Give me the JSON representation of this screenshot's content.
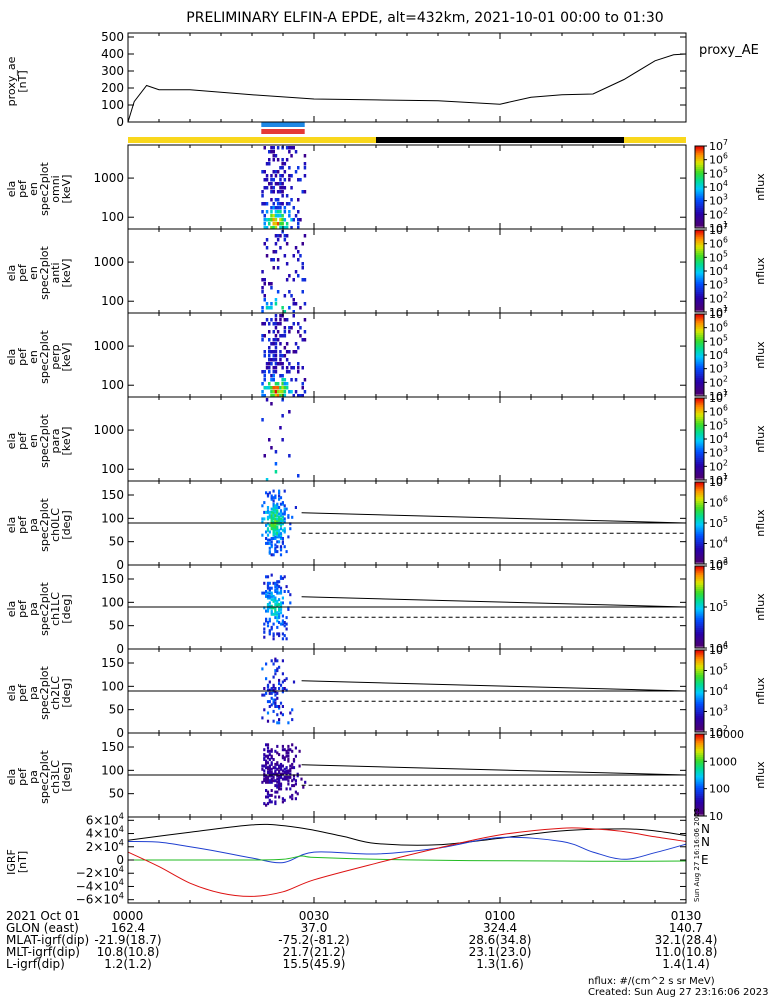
{
  "title": "PRELIMINARY ELFIN-A EPDE, alt=432km, 2021-10-01 00:00 to 01:30",
  "time_axis": {
    "ticks": [
      "0000",
      "0030",
      "0100",
      "0130"
    ],
    "tick_minutes": [
      0,
      30,
      60,
      90
    ],
    "range_minutes": [
      0,
      90
    ]
  },
  "annotation_rows": [
    {
      "label": "2021 Oct 01",
      "values": [
        "0000",
        "0030",
        "0100",
        "0130"
      ]
    },
    {
      "label": "GLON (east)",
      "values": [
        "162.4",
        "37.0",
        "324.4",
        "140.7"
      ]
    },
    {
      "label": "MLAT-igrf(dip)",
      "values": [
        "-21.9(18.7)",
        "-75.2(-81.2)",
        "28.6(34.8)",
        "32.1(28.4)"
      ]
    },
    {
      "label": "MLT-igrf(dip)",
      "values": [
        "10.8(10.8)",
        "21.7(21.2)",
        "23.1(23.0)",
        "11.0(10.8)"
      ]
    },
    {
      "label": "L-igrf(dip)",
      "values": [
        "1.2(1.2)",
        "15.5(45.9)",
        "1.3(1.6)",
        "1.4(1.4)"
      ]
    }
  ],
  "footer": {
    "units": "nflux: #/(cm^2 s sr MeV)",
    "created": "Created: Sun Aug 27 23:16:06 2023"
  },
  "side_stamp": "Sun Aug 27 16:16:06 2023",
  "chart_data": [
    {
      "type": "line",
      "id": "proxy_ae",
      "ylabel": [
        "proxy_ae",
        "[nT]"
      ],
      "legend": "proxy_AE",
      "ylim": [
        0,
        500
      ],
      "yticks": [
        0,
        100,
        200,
        300,
        400,
        500
      ],
      "x": [
        0,
        1,
        3,
        5,
        10,
        20,
        30,
        40,
        50,
        60,
        65,
        70,
        75,
        80,
        85,
        88,
        90
      ],
      "values": [
        0,
        120,
        215,
        190,
        190,
        160,
        135,
        130,
        125,
        105,
        145,
        160,
        165,
        250,
        360,
        395,
        400
      ]
    },
    {
      "type": "bar",
      "id": "status_bars",
      "rows": [
        {
          "segments": [
            {
              "x0": 21.5,
              "x1": 28.5,
              "color": "#1e88e5"
            }
          ]
        },
        {
          "segments": [
            {
              "x0": 21.5,
              "x1": 28.5,
              "color": "#e53935"
            }
          ]
        },
        {
          "segments": [
            {
              "x0": 0,
              "x1": 40,
              "color": "#f9d71c"
            },
            {
              "x0": 40,
              "x1": 80,
              "color": "#000000"
            },
            {
              "x0": 80,
              "x1": 90,
              "color": "#f9d71c"
            }
          ]
        }
      ]
    },
    {
      "type": "heatmap",
      "id": "en_omni",
      "scale": "log",
      "ylabel": [
        "ela",
        "pef",
        "en",
        "spec2plot",
        "omni",
        "[keV]"
      ],
      "yticks": [
        100,
        1000
      ],
      "ylim": [
        50,
        7000
      ],
      "x_range": [
        21.5,
        28.5
      ],
      "intensity": "high",
      "peak_energy": 80,
      "colorbar": {
        "label": "nflux",
        "ticks": [
          "10^1",
          "10^2",
          "10^3",
          "10^4",
          "10^5",
          "10^6",
          "10^7"
        ]
      }
    },
    {
      "type": "heatmap",
      "id": "en_anti",
      "scale": "log",
      "ylabel": [
        "ela",
        "pef",
        "en",
        "spec2plot",
        "anti",
        "[keV]"
      ],
      "yticks": [
        100,
        1000
      ],
      "ylim": [
        50,
        7000
      ],
      "x_range": [
        21.5,
        28.5
      ],
      "intensity": "low",
      "peak_energy": 70,
      "colorbar": {
        "label": "nflux",
        "ticks": [
          "10^1",
          "10^2",
          "10^3",
          "10^4",
          "10^5",
          "10^6",
          "10^7"
        ]
      }
    },
    {
      "type": "heatmap",
      "id": "en_perp",
      "scale": "log",
      "ylabel": [
        "ela",
        "pef",
        "en",
        "spec2plot",
        "perp",
        "[keV]"
      ],
      "yticks": [
        100,
        1000
      ],
      "ylim": [
        50,
        7000
      ],
      "x_range": [
        21.5,
        28.5
      ],
      "intensity": "high",
      "peak_energy": 80,
      "colorbar": {
        "label": "nflux",
        "ticks": [
          "10^1",
          "10^2",
          "10^3",
          "10^4",
          "10^5",
          "10^6",
          "10^7"
        ]
      }
    },
    {
      "type": "heatmap",
      "id": "en_para",
      "scale": "log",
      "ylabel": [
        "ela",
        "pef",
        "en",
        "spec2plot",
        "para",
        "[keV]"
      ],
      "yticks": [
        100,
        1000
      ],
      "ylim": [
        50,
        7000
      ],
      "x_range": [
        21.5,
        28.5
      ],
      "intensity": "very-low",
      "peak_energy": 60,
      "colorbar": {
        "label": "nflux",
        "ticks": [
          "10^1",
          "10^2",
          "10^3",
          "10^4",
          "10^5",
          "10^6",
          "10^7"
        ]
      }
    },
    {
      "type": "heatmap",
      "id": "pa_ch0",
      "scale": "linear",
      "ylabel": [
        "ela",
        "pef",
        "pa",
        "spec2plot",
        "ch0LC",
        "[deg]"
      ],
      "yticks": [
        0,
        50,
        100,
        150
      ],
      "ylim": [
        0,
        180
      ],
      "x_range": [
        21.5,
        28.5
      ],
      "intensity": "high",
      "lines": {
        "solid": [
          [
            28,
            112
          ],
          [
            90,
            90
          ]
        ],
        "dashed": [
          [
            28,
            68
          ],
          [
            90,
            68
          ]
        ],
        "ref": 90
      },
      "colorbar": {
        "label": "nflux",
        "ticks": [
          "10^3",
          "10^4",
          "10^5",
          "10^6",
          "10^7"
        ]
      }
    },
    {
      "type": "heatmap",
      "id": "pa_ch1",
      "scale": "linear",
      "ylabel": [
        "ela",
        "pef",
        "pa",
        "spec2plot",
        "ch1LC",
        "[deg]"
      ],
      "yticks": [
        0,
        50,
        100,
        150
      ],
      "ylim": [
        0,
        180
      ],
      "x_range": [
        21.5,
        28.5
      ],
      "intensity": "medium",
      "lines": {
        "solid": [
          [
            28,
            112
          ],
          [
            90,
            90
          ]
        ],
        "dashed": [
          [
            28,
            68
          ],
          [
            90,
            68
          ]
        ],
        "ref": 90
      },
      "colorbar": {
        "label": "nflux",
        "ticks": [
          "10^4",
          "10^5",
          "10^6"
        ]
      }
    },
    {
      "type": "heatmap",
      "id": "pa_ch2",
      "scale": "linear",
      "ylabel": [
        "ela",
        "pef",
        "pa",
        "spec2plot",
        "ch2LC",
        "[deg]"
      ],
      "yticks": [
        0,
        50,
        100,
        150
      ],
      "ylim": [
        0,
        180
      ],
      "x_range": [
        21.5,
        28.5
      ],
      "intensity": "low",
      "lines": {
        "solid": [
          [
            28,
            112
          ],
          [
            90,
            90
          ]
        ],
        "dashed": [
          [
            28,
            68
          ],
          [
            90,
            68
          ]
        ],
        "ref": 90
      },
      "colorbar": {
        "label": "nflux",
        "ticks": [
          "10^2",
          "10^3",
          "10^4",
          "10^5",
          "10^6"
        ]
      }
    },
    {
      "type": "heatmap",
      "id": "pa_ch3",
      "scale": "linear",
      "ylabel": [
        "ela",
        "pef",
        "pa",
        "spec2plot",
        "ch3LC",
        "[deg]"
      ],
      "yticks": [
        50,
        100,
        150
      ],
      "ylim": [
        0,
        180
      ],
      "x_range": [
        21.5,
        28.5
      ],
      "intensity": "sparse",
      "lines": {
        "solid": [
          [
            28,
            112
          ],
          [
            90,
            90
          ]
        ],
        "dashed": [
          [
            28,
            68
          ],
          [
            90,
            68
          ]
        ],
        "ref": 90
      },
      "colorbar": {
        "label": "nflux",
        "ticks": [
          "10",
          "100",
          "1000",
          "10000"
        ]
      }
    },
    {
      "type": "line",
      "id": "igrf",
      "ylabel": [
        "IGRF",
        "[nT]"
      ],
      "ylim": [
        -65000,
        65000
      ],
      "yticks": [
        -60000,
        -40000,
        -20000,
        0,
        20000,
        40000,
        60000
      ],
      "ytick_labels": [
        "−6×10^4",
        "−4×10^4",
        "−2×10^4",
        "0",
        "2×10^4",
        "4×10^4",
        "6×10^4"
      ],
      "series": [
        {
          "name": "N",
          "color": "#000000",
          "x": [
            0,
            10,
            20,
            25,
            30,
            35,
            40,
            50,
            60,
            70,
            80,
            85,
            90
          ],
          "values": [
            30000,
            42000,
            53000,
            52000,
            45000,
            35000,
            25000,
            23000,
            33000,
            44000,
            47000,
            44000,
            37000
          ]
        },
        {
          "name": "N",
          "color": "#1f3fd0",
          "x": [
            0,
            5,
            10,
            15,
            20,
            25,
            30,
            40,
            50,
            60,
            70,
            75,
            80,
            85,
            90
          ],
          "values": [
            28000,
            27000,
            20000,
            12000,
            3000,
            -4000,
            12000,
            9000,
            18000,
            34000,
            28000,
            12000,
            1000,
            11000,
            24000
          ]
        },
        {
          "name": "E",
          "color": "#22bb22",
          "x": [
            0,
            10,
            20,
            25,
            28,
            30,
            40,
            50,
            60,
            70,
            80,
            90
          ],
          "values": [
            0,
            0,
            0,
            1000,
            6000,
            4000,
            1000,
            -500,
            -1000,
            -1500,
            -2000,
            -1500
          ]
        },
        {
          "name": "",
          "color": "#dd1111",
          "x": [
            0,
            5,
            10,
            15,
            20,
            25,
            30,
            40,
            50,
            60,
            70,
            75,
            80,
            85,
            90
          ],
          "values": [
            12000,
            -10000,
            -35000,
            -50000,
            -55000,
            -48000,
            -30000,
            -5000,
            18000,
            38000,
            48000,
            47000,
            43000,
            35000,
            28000
          ]
        }
      ]
    }
  ]
}
